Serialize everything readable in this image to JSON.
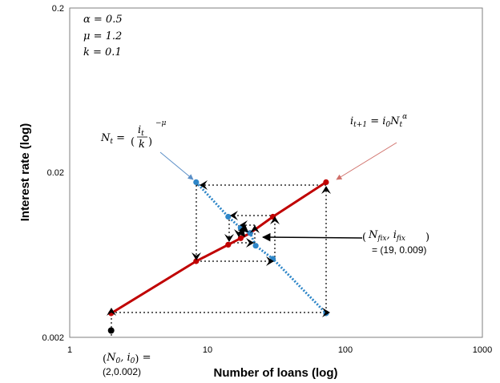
{
  "chart_data": {
    "type": "scatter",
    "xscale": "log",
    "yscale": "log",
    "xlim": [
      1,
      1000
    ],
    "ylim": [
      0.002,
      0.2
    ],
    "xlabel": "Number of loans (log)",
    "ylabel": "Interest rate (log)",
    "xticks": [
      "1",
      "10",
      "100",
      "1000"
    ],
    "yticks": [
      "0.002",
      "0.02",
      "0.2"
    ],
    "params": [
      "α = 0.5",
      "μ = 1.2",
      "k = 0.1"
    ],
    "series": [
      {
        "name": "i_{t+1} = i_0 N_t^α",
        "color": "#c00000",
        "style": "solid",
        "points": [
          [
            2,
            0.0028
          ],
          [
            8.3,
            0.0058
          ],
          [
            14.2,
            0.0073
          ],
          [
            17.5,
            0.008
          ],
          [
            20.5,
            0.0086
          ],
          [
            30,
            0.0108
          ],
          [
            73,
            0.0175
          ]
        ]
      },
      {
        "name": "N_t = (i_t/k)^{-μ}",
        "color": "#2e86c8",
        "style": "dotted",
        "points": [
          [
            8.3,
            0.0175
          ],
          [
            14.2,
            0.0108
          ],
          [
            17.5,
            0.0092
          ],
          [
            20.5,
            0.0086
          ],
          [
            22.5,
            0.0072
          ],
          [
            30,
            0.006
          ],
          [
            73,
            0.0028
          ]
        ]
      }
    ],
    "initial_point": [
      2,
      0.0022
    ],
    "fixed_point": [
      19,
      0.009
    ],
    "annotations": {
      "red_curve": "i_{t+1} = i_0 N_t^α",
      "blue_curve": "N_t = (i_t/k)^{-μ}",
      "fixed_point_label": "(N_fix, i_fix)",
      "fixed_point_value": "= (19, 0.009)",
      "initial_label": "(N_0, i_0) =",
      "initial_value": "(2,0.002)"
    }
  }
}
